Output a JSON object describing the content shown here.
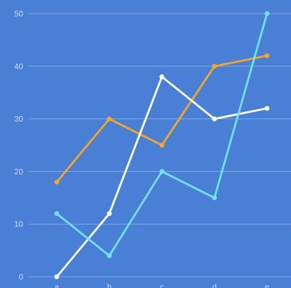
{
  "chart_data": {
    "type": "line",
    "title": "",
    "xlabel": "",
    "ylabel": "",
    "categories": [
      "a",
      "b",
      "c",
      "d",
      "e"
    ],
    "ylim": [
      0,
      50
    ],
    "yticks": [
      0,
      10,
      20,
      30,
      40,
      50
    ],
    "grid": true,
    "legend": "none",
    "series": [
      {
        "values": [
          18,
          30,
          25,
          40,
          42
        ],
        "color": "#f5a623"
      },
      {
        "values": [
          0,
          12,
          38,
          30,
          32
        ],
        "color": "#ffffff"
      },
      {
        "values": [
          12,
          4,
          20,
          15,
          50
        ],
        "color": "#6fe3f0"
      }
    ]
  },
  "colors": {
    "background": "#4a7fd6",
    "grid": "#7aa2e3",
    "tick_text": "#c9d9f5"
  }
}
